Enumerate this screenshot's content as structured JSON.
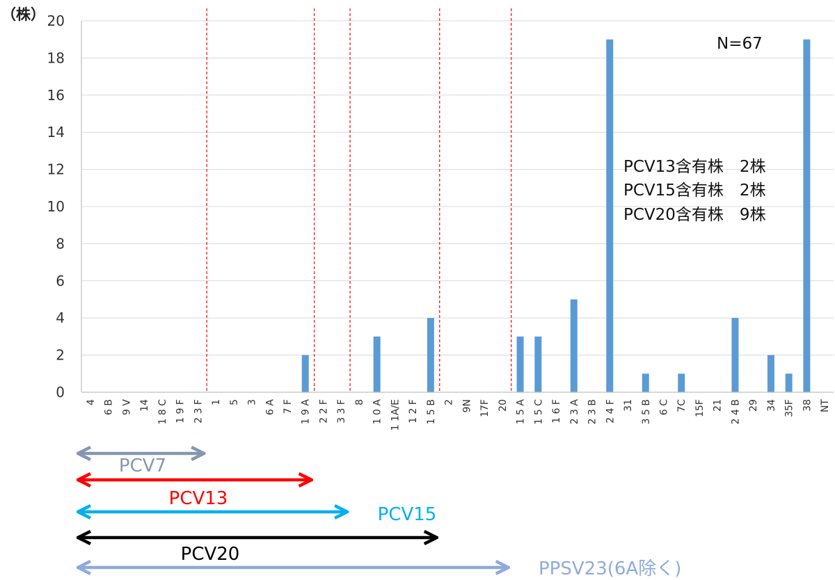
{
  "chart_data": {
    "type": "bar",
    "y_unit": "（株）",
    "ylim": [
      0,
      20
    ],
    "yticks": [
      0,
      2,
      4,
      6,
      8,
      10,
      12,
      14,
      16,
      18,
      20
    ],
    "grid": true,
    "categories": [
      "4",
      "6B",
      "9V",
      "14",
      "18C",
      "19F",
      "23F",
      "1",
      "5",
      "3",
      "6A",
      "7F",
      "19A",
      "22F",
      "33F",
      "8",
      "10A",
      "11A/E",
      "12F",
      "15B",
      "2",
      "9N",
      "17F",
      "20",
      "15A",
      "15C",
      "16F",
      "23A",
      "23B",
      "24F",
      "31",
      "35B",
      "6C",
      "7C",
      "15F",
      "21",
      "24B",
      "29",
      "34",
      "35F",
      "38",
      "NT"
    ],
    "tick_labels": [
      "4",
      "6 B",
      "9 V",
      "14",
      "1 8 C",
      "1 9 F",
      "2 3 F",
      "1",
      "5",
      "3",
      "6 A",
      "7 F",
      "1 9 A",
      "2 2 F",
      "3 3 F",
      "8",
      "1 0 A",
      "1 1A/E",
      "1 2 F",
      "1 5 B",
      "2",
      "9N",
      "17F",
      "20",
      "1 5 A",
      "1 5 C",
      "1 6 F",
      "2 3 A",
      "2 3 B",
      "2 4 F",
      "31",
      "3 5 B",
      "6 C",
      "7C",
      "15F",
      "21",
      "2 4 B",
      "29",
      "34",
      "35F",
      "38",
      "NT"
    ],
    "values": [
      0,
      0,
      0,
      0,
      0,
      0,
      0,
      0,
      0,
      0,
      0,
      0,
      2,
      0,
      0,
      0,
      3,
      0,
      0,
      4,
      0,
      0,
      0,
      0,
      3,
      3,
      0,
      5,
      0,
      19,
      0,
      1,
      0,
      1,
      0,
      0,
      4,
      0,
      2,
      1,
      19,
      0
    ],
    "bar_color": "#5b9bd5",
    "group_dividers_after": [
      "23F",
      "19A",
      "33F",
      "15B",
      "20"
    ],
    "divider_color": "#ff0000",
    "annotations": {
      "n": "N=67",
      "lines": [
        "PCV13含有株　2株",
        "PCV15含有株　2株",
        "PCV20含有株　9株"
      ]
    },
    "vaccine_ranges": [
      {
        "name": "PCV7",
        "color": "#8497b0",
        "end_after": "23F"
      },
      {
        "name": "PCV13",
        "color": "#ff0000",
        "end_after": "19A"
      },
      {
        "name": "PCV15",
        "color": "#00b0f0",
        "end_after": "33F"
      },
      {
        "name": "PCV20",
        "color": "#000000",
        "end_after": "15B"
      },
      {
        "name": "PPSV23(6A除く)",
        "color": "#8faadc",
        "end_after": "20"
      }
    ]
  }
}
